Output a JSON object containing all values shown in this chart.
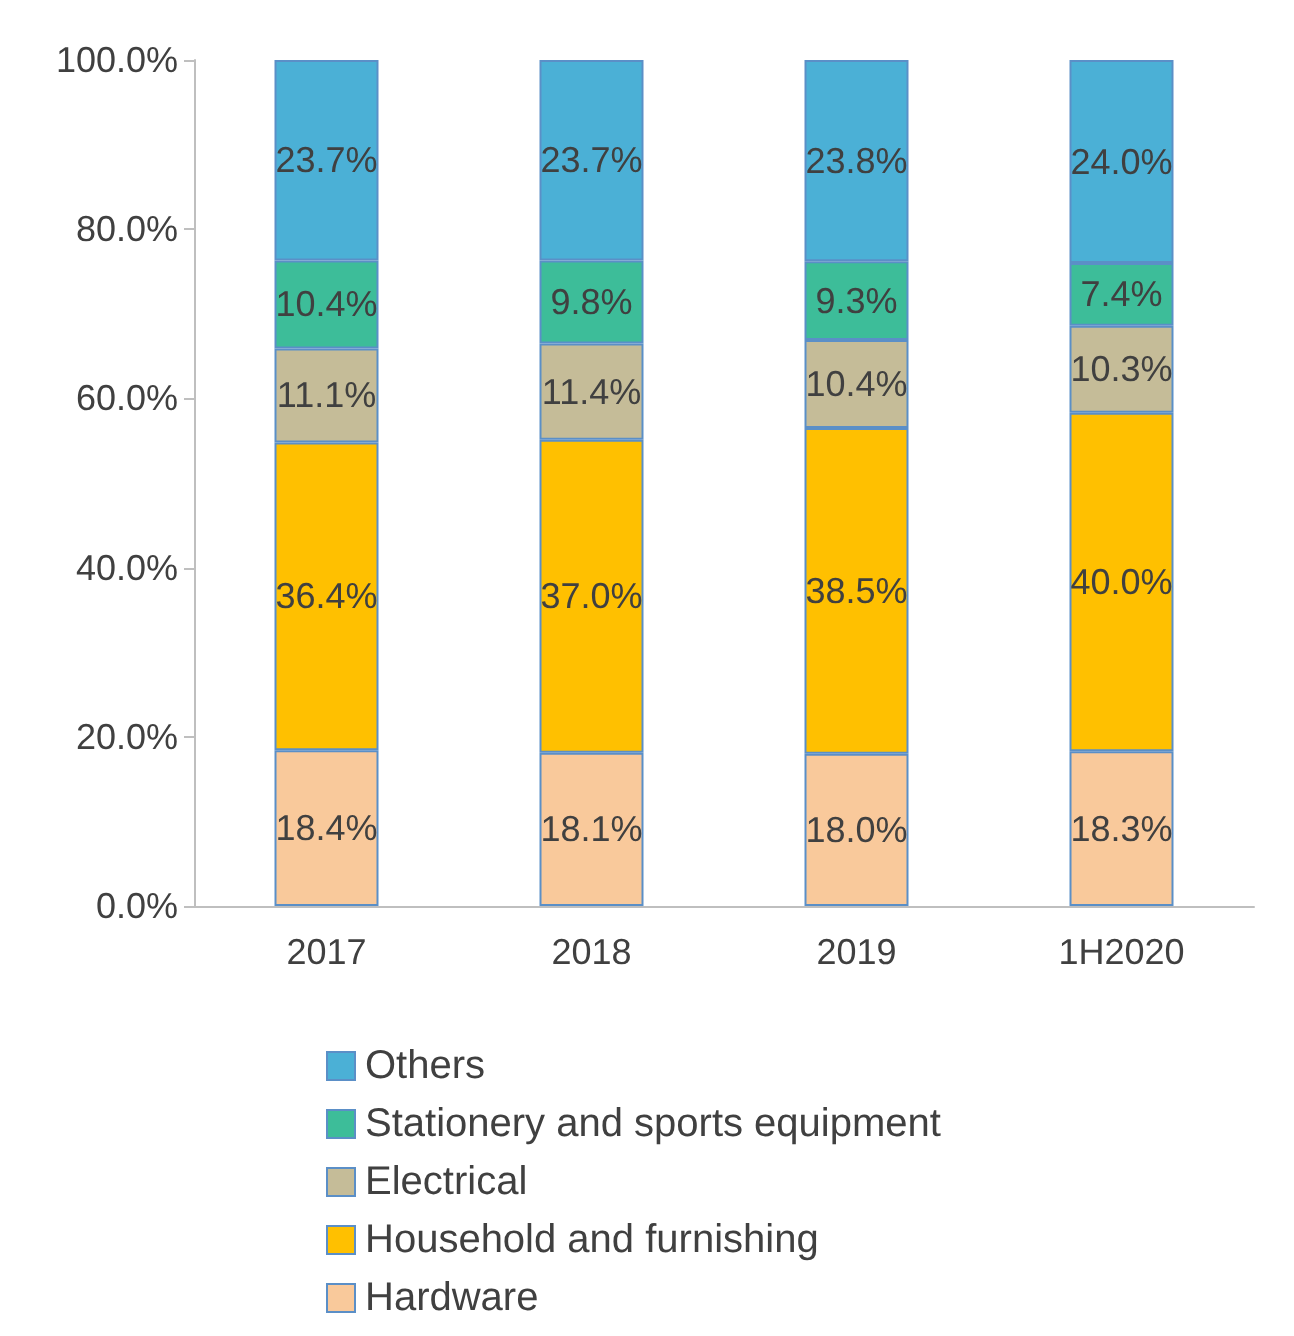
{
  "chart_data": {
    "type": "bar",
    "stacked": true,
    "categories": [
      "2017",
      "2018",
      "2019",
      "1H2020"
    ],
    "series": [
      {
        "name": "Hardware",
        "color": "#f9c99b",
        "values": [
          18.4,
          18.1,
          18.0,
          18.3
        ],
        "value_labels": [
          "18.4%",
          "18.1%",
          "18.0%",
          "18.3%"
        ]
      },
      {
        "name": "Household and furnishing",
        "color": "#ffc000",
        "values": [
          36.4,
          37.0,
          38.5,
          40.0
        ],
        "value_labels": [
          "36.4%",
          "37.0%",
          "38.5%",
          "40.0%"
        ]
      },
      {
        "name": "Electrical",
        "color": "#c5bc98",
        "values": [
          11.1,
          11.4,
          10.4,
          10.3
        ],
        "value_labels": [
          "11.1%",
          "11.4%",
          "10.4%",
          "10.3%"
        ]
      },
      {
        "name": "Stationery and sports equipment",
        "color": "#3dbd99",
        "values": [
          10.4,
          9.8,
          9.3,
          7.4
        ],
        "value_labels": [
          "10.4%",
          "9.8%",
          "9.3%",
          "7.4%"
        ]
      },
      {
        "name": "Others",
        "color": "#4bb0d6",
        "values": [
          23.7,
          23.7,
          23.8,
          24.0
        ],
        "value_labels": [
          "23.7%",
          "23.7%",
          "23.8%",
          "24.0%"
        ]
      }
    ],
    "ylim": [
      0,
      100
    ],
    "yticks": [
      {
        "value": 0,
        "label": "0.0%"
      },
      {
        "value": 20,
        "label": "20.0%"
      },
      {
        "value": 40,
        "label": "40.0%"
      },
      {
        "value": 60,
        "label": "60.0%"
      },
      {
        "value": 80,
        "label": "80.0%"
      },
      {
        "value": 100,
        "label": "100.0%"
      }
    ],
    "grid": false,
    "legend": "bottom"
  }
}
